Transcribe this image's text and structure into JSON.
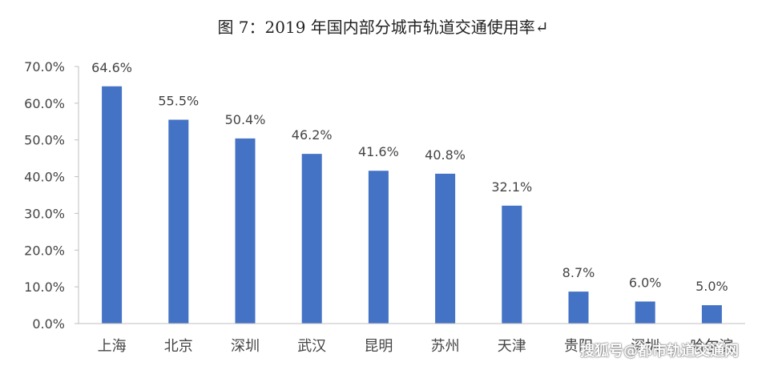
{
  "title": "图 7：2019 年国内部分城市轨道交通使用率↵",
  "watermark": "搜狐号@都市轨道交通网",
  "chart_data": {
    "type": "bar",
    "categories": [
      "上海",
      "北京",
      "深圳",
      "武汉",
      "昆明",
      "苏州",
      "天津",
      "贵阳",
      "深圳",
      "哈尔滨"
    ],
    "values": [
      64.6,
      55.5,
      50.4,
      46.2,
      41.6,
      40.8,
      32.1,
      8.7,
      6.0,
      5.0
    ],
    "data_labels": [
      "64.6%",
      "55.5%",
      "50.4%",
      "46.2%",
      "41.6%",
      "40.8%",
      "32.1%",
      "8.7%",
      "6.0%",
      "5.0%"
    ],
    "y_ticks": [
      "0.0%",
      "10.0%",
      "20.0%",
      "30.0%",
      "40.0%",
      "50.0%",
      "60.0%",
      "70.0%"
    ],
    "ylim": [
      0,
      70
    ],
    "grid": false,
    "bar_color": "#4472C4",
    "axis_color": "#bfbfbf"
  }
}
